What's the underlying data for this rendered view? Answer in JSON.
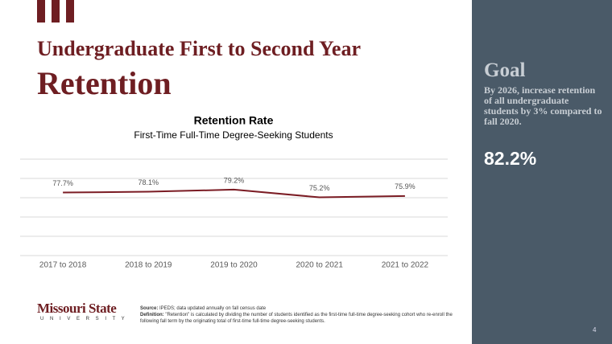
{
  "slide": {
    "title_line1": "Undergraduate First to Second Year",
    "title_line2": "Retention",
    "goal_heading": "Goal",
    "goal_text": "By 2026, increase retention of all undergraduate students by 3% compared to fall 2020.",
    "goal_value": "82.2%",
    "logo_name": "Missouri State",
    "logo_sub": "U N I V E R S I T Y",
    "source_label": "Source:",
    "source_text": "IPEDS; data updated annually on fall census date",
    "definition_label": "Definition:",
    "definition_text": "\"Retention\" is calculated by dividing the number of students identified as the first-time full-time degree-seeking cohort who re-enroll the following fall term by the originating total of first-time full-time degree-seeking students.",
    "page_number": "4"
  },
  "chart_data": {
    "type": "line",
    "title": "Retention Rate",
    "subtitle": "First-Time Full-Time Degree-Seeking Students",
    "categories": [
      "2017 to 2018",
      "2018 to 2019",
      "2019 to 2020",
      "2020 to 2021",
      "2021 to 2022"
    ],
    "values": [
      77.7,
      78.1,
      79.2,
      75.2,
      75.9
    ],
    "value_labels": [
      "77.7%",
      "78.1%",
      "79.2%",
      "75.2%",
      "75.9%"
    ],
    "color": "#7b1c24",
    "ylim": [
      45,
      95
    ],
    "yticks": [
      45,
      55,
      65,
      75,
      85,
      95
    ],
    "grid": true
  }
}
